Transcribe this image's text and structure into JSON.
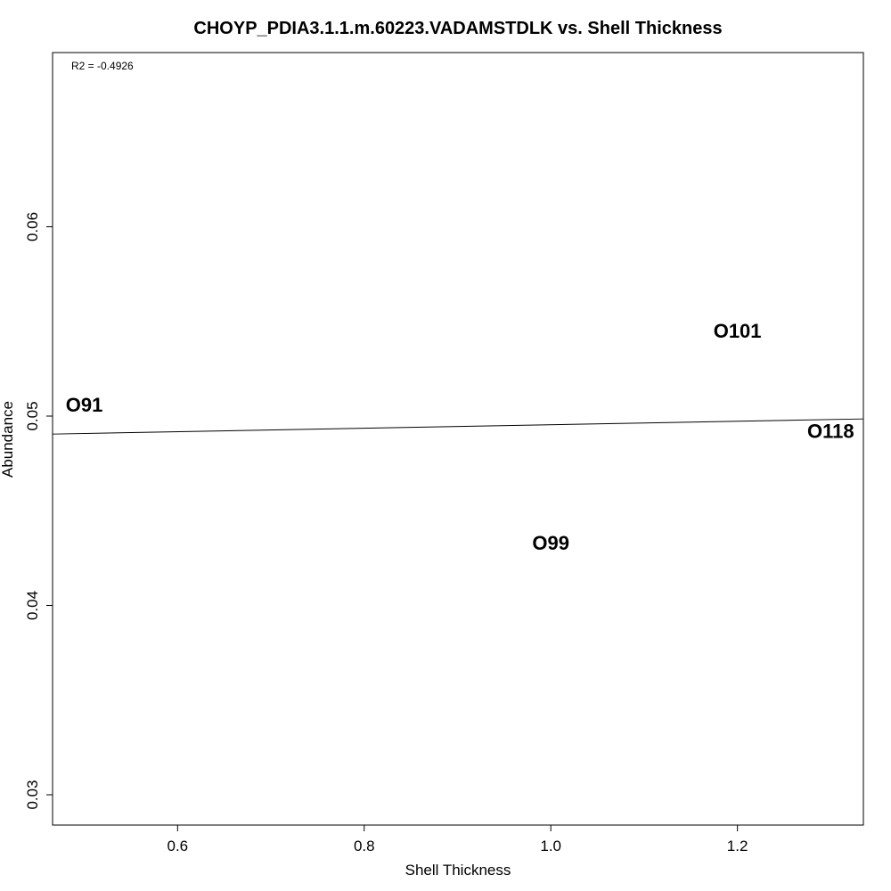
{
  "chart_data": {
    "type": "scatter",
    "title": "CHOYP_PDIA3.1.1.m.60223.VADAMSTDLK vs. Shell Thickness",
    "xlabel": "Shell Thickness",
    "ylabel": "Abundance",
    "xlim": [
      0.466,
      1.335
    ],
    "ylim": [
      0.0284,
      0.0692
    ],
    "x_ticks": [
      0.6,
      0.8,
      1.0,
      1.2
    ],
    "x_tick_labels": [
      "0.6",
      "0.8",
      "1.0",
      "1.2"
    ],
    "y_ticks": [
      0.03,
      0.04,
      0.05,
      0.06
    ],
    "y_tick_labels": [
      "0.03",
      "0.04",
      "0.05",
      "0.06"
    ],
    "points": [
      {
        "label": "O91",
        "x": 0.5,
        "y": 0.0506
      },
      {
        "label": "O99",
        "x": 1.0,
        "y": 0.0433
      },
      {
        "label": "O101",
        "x": 1.2,
        "y": 0.0545
      },
      {
        "label": "O118",
        "x": 1.3,
        "y": 0.0492
      }
    ],
    "regression_line": {
      "x": [
        0.466,
        1.335
      ],
      "y": [
        0.04905,
        0.04985
      ]
    },
    "annotation": "R2 = -0.4926",
    "grid": false,
    "legend": "none"
  }
}
